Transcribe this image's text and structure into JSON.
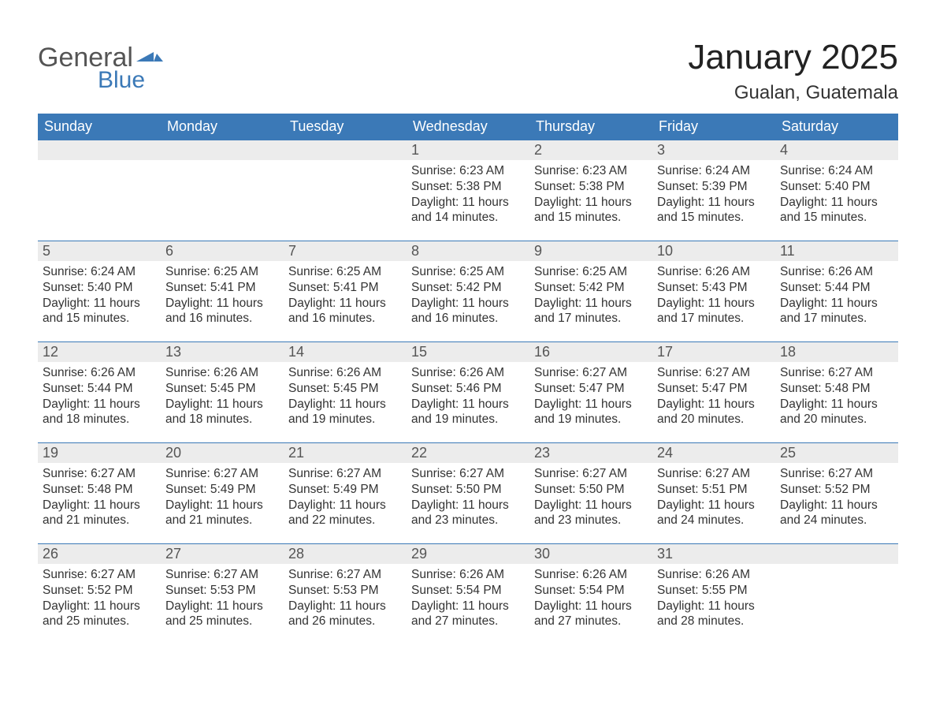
{
  "logo": {
    "text1": "General",
    "text2": "Blue"
  },
  "title": "January 2025",
  "location": "Gualan, Guatemala",
  "colors": {
    "header_bg": "#3b79b7",
    "header_text": "#ffffff",
    "daynum_bg": "#ececec",
    "row_border": "#3b79b7",
    "body_text": "#333333",
    "logo_gray": "#555555",
    "logo_blue": "#3b79b7",
    "page_bg": "#ffffff"
  },
  "day_labels": [
    "Sunday",
    "Monday",
    "Tuesday",
    "Wednesday",
    "Thursday",
    "Friday",
    "Saturday"
  ],
  "weeks": [
    [
      {
        "blank": true
      },
      {
        "blank": true
      },
      {
        "blank": true
      },
      {
        "n": "1",
        "sunrise": "6:23 AM",
        "sunset": "5:38 PM",
        "daylight": "11 hours and 14 minutes."
      },
      {
        "n": "2",
        "sunrise": "6:23 AM",
        "sunset": "5:38 PM",
        "daylight": "11 hours and 15 minutes."
      },
      {
        "n": "3",
        "sunrise": "6:24 AM",
        "sunset": "5:39 PM",
        "daylight": "11 hours and 15 minutes."
      },
      {
        "n": "4",
        "sunrise": "6:24 AM",
        "sunset": "5:40 PM",
        "daylight": "11 hours and 15 minutes."
      }
    ],
    [
      {
        "n": "5",
        "sunrise": "6:24 AM",
        "sunset": "5:40 PM",
        "daylight": "11 hours and 15 minutes."
      },
      {
        "n": "6",
        "sunrise": "6:25 AM",
        "sunset": "5:41 PM",
        "daylight": "11 hours and 16 minutes."
      },
      {
        "n": "7",
        "sunrise": "6:25 AM",
        "sunset": "5:41 PM",
        "daylight": "11 hours and 16 minutes."
      },
      {
        "n": "8",
        "sunrise": "6:25 AM",
        "sunset": "5:42 PM",
        "daylight": "11 hours and 16 minutes."
      },
      {
        "n": "9",
        "sunrise": "6:25 AM",
        "sunset": "5:42 PM",
        "daylight": "11 hours and 17 minutes."
      },
      {
        "n": "10",
        "sunrise": "6:26 AM",
        "sunset": "5:43 PM",
        "daylight": "11 hours and 17 minutes."
      },
      {
        "n": "11",
        "sunrise": "6:26 AM",
        "sunset": "5:44 PM",
        "daylight": "11 hours and 17 minutes."
      }
    ],
    [
      {
        "n": "12",
        "sunrise": "6:26 AM",
        "sunset": "5:44 PM",
        "daylight": "11 hours and 18 minutes."
      },
      {
        "n": "13",
        "sunrise": "6:26 AM",
        "sunset": "5:45 PM",
        "daylight": "11 hours and 18 minutes."
      },
      {
        "n": "14",
        "sunrise": "6:26 AM",
        "sunset": "5:45 PM",
        "daylight": "11 hours and 19 minutes."
      },
      {
        "n": "15",
        "sunrise": "6:26 AM",
        "sunset": "5:46 PM",
        "daylight": "11 hours and 19 minutes."
      },
      {
        "n": "16",
        "sunrise": "6:27 AM",
        "sunset": "5:47 PM",
        "daylight": "11 hours and 19 minutes."
      },
      {
        "n": "17",
        "sunrise": "6:27 AM",
        "sunset": "5:47 PM",
        "daylight": "11 hours and 20 minutes."
      },
      {
        "n": "18",
        "sunrise": "6:27 AM",
        "sunset": "5:48 PM",
        "daylight": "11 hours and 20 minutes."
      }
    ],
    [
      {
        "n": "19",
        "sunrise": "6:27 AM",
        "sunset": "5:48 PM",
        "daylight": "11 hours and 21 minutes."
      },
      {
        "n": "20",
        "sunrise": "6:27 AM",
        "sunset": "5:49 PM",
        "daylight": "11 hours and 21 minutes."
      },
      {
        "n": "21",
        "sunrise": "6:27 AM",
        "sunset": "5:49 PM",
        "daylight": "11 hours and 22 minutes."
      },
      {
        "n": "22",
        "sunrise": "6:27 AM",
        "sunset": "5:50 PM",
        "daylight": "11 hours and 23 minutes."
      },
      {
        "n": "23",
        "sunrise": "6:27 AM",
        "sunset": "5:50 PM",
        "daylight": "11 hours and 23 minutes."
      },
      {
        "n": "24",
        "sunrise": "6:27 AM",
        "sunset": "5:51 PM",
        "daylight": "11 hours and 24 minutes."
      },
      {
        "n": "25",
        "sunrise": "6:27 AM",
        "sunset": "5:52 PM",
        "daylight": "11 hours and 24 minutes."
      }
    ],
    [
      {
        "n": "26",
        "sunrise": "6:27 AM",
        "sunset": "5:52 PM",
        "daylight": "11 hours and 25 minutes."
      },
      {
        "n": "27",
        "sunrise": "6:27 AM",
        "sunset": "5:53 PM",
        "daylight": "11 hours and 25 minutes."
      },
      {
        "n": "28",
        "sunrise": "6:27 AM",
        "sunset": "5:53 PM",
        "daylight": "11 hours and 26 minutes."
      },
      {
        "n": "29",
        "sunrise": "6:26 AM",
        "sunset": "5:54 PM",
        "daylight": "11 hours and 27 minutes."
      },
      {
        "n": "30",
        "sunrise": "6:26 AM",
        "sunset": "5:54 PM",
        "daylight": "11 hours and 27 minutes."
      },
      {
        "n": "31",
        "sunrise": "6:26 AM",
        "sunset": "5:55 PM",
        "daylight": "11 hours and 28 minutes."
      },
      {
        "blank": true
      }
    ]
  ],
  "labels": {
    "sunrise": "Sunrise: ",
    "sunset": "Sunset: ",
    "daylight": "Daylight: "
  }
}
